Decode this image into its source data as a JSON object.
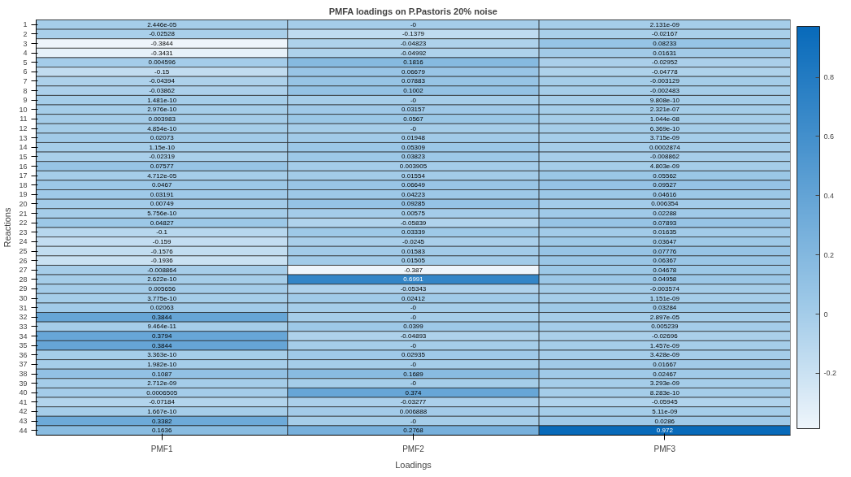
{
  "chart_data": {
    "type": "heatmap",
    "title": "PMFA loadings on P.Pastoris 20% noise",
    "xlabel": "Loadings",
    "ylabel": "Reactions",
    "categories": [
      "PMF1",
      "PMF2",
      "PMF3"
    ],
    "y_categories": [
      "1",
      "2",
      "3",
      "4",
      "5",
      "6",
      "7",
      "8",
      "9",
      "10",
      "11",
      "12",
      "13",
      "14",
      "15",
      "16",
      "17",
      "18",
      "19",
      "20",
      "21",
      "22",
      "23",
      "24",
      "25",
      "26",
      "27",
      "28",
      "29",
      "30",
      "31",
      "32",
      "33",
      "34",
      "35",
      "36",
      "37",
      "38",
      "39",
      "40",
      "41",
      "42",
      "43",
      "44"
    ],
    "cells": [
      [
        2.446e-05,
        0,
        2.131e-09
      ],
      [
        -0.02528,
        -0.1379,
        -0.02167
      ],
      [
        -0.3844,
        -0.04823,
        0.08233
      ],
      [
        -0.3431,
        -0.04992,
        0.01631
      ],
      [
        0.004596,
        0.1816,
        -0.02952
      ],
      [
        -0.15,
        0.06679,
        -0.04778
      ],
      [
        -0.04394,
        0.07883,
        -0.003129
      ],
      [
        -0.03862,
        0.1002,
        -0.002483
      ],
      [
        1.481e-10,
        0,
        9.808e-10
      ],
      [
        2.976e-10,
        0.03157,
        2.321e-07
      ],
      [
        0.003983,
        0.0567,
        1.044e-08
      ],
      [
        4.854e-10,
        0,
        6.369e-10
      ],
      [
        0.02073,
        0.01948,
        3.715e-09
      ],
      [
        1.15e-10,
        0.05309,
        0.0002874
      ],
      [
        -0.02319,
        0.03823,
        -0.008862
      ],
      [
        0.07577,
        0.003905,
        4.803e-09
      ],
      [
        4.712e-05,
        0.01554,
        0.05562
      ],
      [
        0.0467,
        0.06649,
        0.09527
      ],
      [
        0.03191,
        0.04223,
        0.04616
      ],
      [
        0.00749,
        0.09285,
        0.006354
      ],
      [
        5.756e-10,
        0.00575,
        0.02288
      ],
      [
        0.04827,
        -0.05839,
        0.07893
      ],
      [
        -0.1,
        0.03339,
        0.01635
      ],
      [
        -0.159,
        -0.0245,
        0.03647
      ],
      [
        -0.1576,
        0.01583,
        0.07776
      ],
      [
        -0.1936,
        0.01505,
        0.06367
      ],
      [
        -0.008864,
        -0.387,
        0.04678
      ],
      [
        2.622e-10,
        0.6991,
        0.04958
      ],
      [
        0.005656,
        -0.05343,
        -0.003574
      ],
      [
        3.775e-10,
        0.02412,
        1.151e-09
      ],
      [
        0.02063,
        0,
        0.03284
      ],
      [
        0.3844,
        0,
        2.897e-05
      ],
      [
        9.464e-11,
        0.0399,
        0.005239
      ],
      [
        0.3794,
        -0.04893,
        -0.02696
      ],
      [
        0.3844,
        0,
        1.457e-09
      ],
      [
        3.363e-10,
        0.02935,
        3.428e-09
      ],
      [
        1.982e-10,
        0,
        0.01667
      ],
      [
        0.1087,
        0.1689,
        0.02467
      ],
      [
        2.712e-09,
        0,
        3.293e-09
      ],
      [
        0.0006505,
        0.374,
        8.283e-10
      ],
      [
        -0.07184,
        -0.03277,
        -0.05945
      ],
      [
        1.667e-10,
        0.006888,
        5.11e-09
      ],
      [
        0.3382,
        0,
        0.0286
      ],
      [
        0.1636,
        0.2768,
        0.972
      ]
    ],
    "cell_labels": [
      [
        "2.446e-05",
        "-0",
        "2.131e-09"
      ],
      [
        "-0.02528",
        "-0.1379",
        "-0.02167"
      ],
      [
        "-0.3844",
        "-0.04823",
        "0.08233"
      ],
      [
        "-0.3431",
        "-0.04992",
        "0.01631"
      ],
      [
        "0.004596",
        "0.1816",
        "-0.02952"
      ],
      [
        "-0.15",
        "0.06679",
        "-0.04778"
      ],
      [
        "-0.04394",
        "0.07883",
        "-0.003129"
      ],
      [
        "-0.03862",
        "0.1002",
        "-0.002483"
      ],
      [
        "1.481e-10",
        "-0",
        "9.808e-10"
      ],
      [
        "2.976e-10",
        "0.03157",
        "2.321e-07"
      ],
      [
        "0.003983",
        "0.0567",
        "1.044e-08"
      ],
      [
        "4.854e-10",
        "-0",
        "6.369e-10"
      ],
      [
        "0.02073",
        "0.01948",
        "3.715e-09"
      ],
      [
        "1.15e-10",
        "0.05309",
        "0.0002874"
      ],
      [
        "-0.02319",
        "0.03823",
        "-0.008862"
      ],
      [
        "0.07577",
        "0.003905",
        "4.803e-09"
      ],
      [
        "4.712e-05",
        "0.01554",
        "0.05562"
      ],
      [
        "0.0467",
        "0.06649",
        "0.09527"
      ],
      [
        "0.03191",
        "0.04223",
        "0.04616"
      ],
      [
        "0.00749",
        "0.09285",
        "0.006354"
      ],
      [
        "5.756e-10",
        "0.00575",
        "0.02288"
      ],
      [
        "0.04827",
        "-0.05839",
        "0.07893"
      ],
      [
        "-0.1",
        "0.03339",
        "0.01635"
      ],
      [
        "-0.159",
        "-0.0245",
        "0.03647"
      ],
      [
        "-0.1576",
        "0.01583",
        "0.07776"
      ],
      [
        "-0.1936",
        "0.01505",
        "0.06367"
      ],
      [
        "-0.008864",
        "-0.387",
        "0.04678"
      ],
      [
        "2.622e-10",
        "0.6991",
        "0.04958"
      ],
      [
        "0.005656",
        "-0.05343",
        "-0.003574"
      ],
      [
        "3.775e-10",
        "0.02412",
        "1.151e-09"
      ],
      [
        "0.02063",
        "-0",
        "0.03284"
      ],
      [
        "0.3844",
        "-0",
        "2.897e-05"
      ],
      [
        "9.464e-11",
        "0.0399",
        "0.005239"
      ],
      [
        "0.3794",
        "-0.04893",
        "-0.02696"
      ],
      [
        "0.3844",
        "-0",
        "1.457e-09"
      ],
      [
        "3.363e-10",
        "0.02935",
        "3.428e-09"
      ],
      [
        "1.982e-10",
        "-0",
        "0.01667"
      ],
      [
        "0.1087",
        "0.1689",
        "0.02467"
      ],
      [
        "2.712e-09",
        "-0",
        "3.293e-09"
      ],
      [
        "0.0006505",
        "0.374",
        "8.283e-10"
      ],
      [
        "-0.07184",
        "-0.03277",
        "-0.05945"
      ],
      [
        "1.667e-10",
        "0.006888",
        "5.11e-09"
      ],
      [
        "0.3382",
        "-0",
        "0.0286"
      ],
      [
        "0.1636",
        "0.2768",
        "0.972"
      ]
    ],
    "clim": [
      -0.387,
      0.972
    ],
    "cticks": [
      -0.2,
      0,
      0.2,
      0.4,
      0.6,
      0.8
    ]
  }
}
